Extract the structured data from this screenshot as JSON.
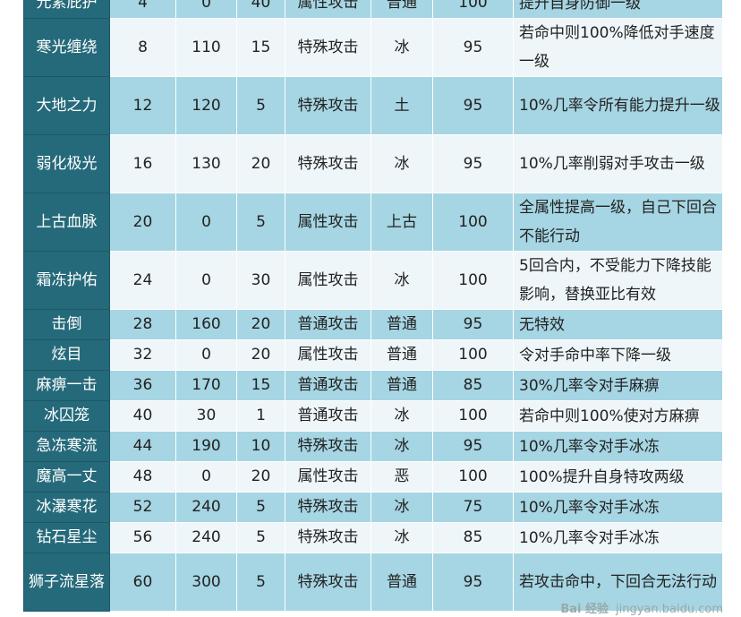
{
  "rows": [
    [
      "元素庇护",
      "4",
      "0",
      "40",
      "属性攻击",
      "普通",
      "100",
      "提升自身防御一级"
    ],
    [
      "寒光缠绕",
      "8",
      "110",
      "15",
      "特殊攻击",
      "冰",
      "95",
      "若命中则100%降低对手速度一级"
    ],
    [
      "大地之力",
      "12",
      "120",
      "5",
      "特殊攻击",
      "土",
      "95",
      "10%几率令所有能力提升一级"
    ],
    [
      "弱化极光",
      "16",
      "130",
      "20",
      "特殊攻击",
      "冰",
      "95",
      "10%几率削弱对手攻击一级"
    ],
    [
      "上古血脉",
      "20",
      "0",
      "5",
      "属性攻击",
      "上古",
      "100",
      "全属性提高一级，自己下回合不能行动"
    ],
    [
      "霜冻护佑",
      "24",
      "0",
      "30",
      "属性攻击",
      "冰",
      "100",
      "5回合内，不受能力下降技能影响，替换亚比有效"
    ],
    [
      "击倒",
      "28",
      "160",
      "20",
      "普通攻击",
      "普通",
      "95",
      "无特效"
    ],
    [
      "炫目",
      "32",
      "0",
      "20",
      "属性攻击",
      "普通",
      "100",
      "令对手命中率下降一级"
    ],
    [
      "麻痹一击",
      "36",
      "170",
      "15",
      "普通攻击",
      "普通",
      "85",
      "30%几率令对手麻痹"
    ],
    [
      "冰囚笼",
      "40",
      "30",
      "1",
      "普通攻击",
      "冰",
      "100",
      "若命中则100%使对方麻痹"
    ],
    [
      "急冻寒流",
      "44",
      "190",
      "10",
      "特殊攻击",
      "冰",
      "95",
      "10%几率令对手冰冻"
    ],
    [
      "魔高一丈",
      "48",
      "0",
      "20",
      "属性攻击",
      "恶",
      "100",
      "100%提升自身特攻两级"
    ],
    [
      "冰瀑寒花",
      "52",
      "240",
      "5",
      "特殊攻击",
      "冰",
      "75",
      "10%几率令对手冰冻"
    ],
    [
      "钻石星尘",
      "56",
      "240",
      "5",
      "特殊攻击",
      "冰",
      "85",
      "10%几率令对手冰冻"
    ],
    [
      "狮子流星落",
      "60",
      "300",
      "5",
      "特殊攻击",
      "普通",
      "95",
      "若攻击命中，下回合无法行动"
    ]
  ],
  "watermark": {
    "logo": "Bai 经验",
    "url": "jingyan.baidu.com"
  },
  "colors": {
    "name_bg": "#256a7a",
    "row_blue": "#a6d5e3",
    "row_light": "#eef6f9"
  }
}
